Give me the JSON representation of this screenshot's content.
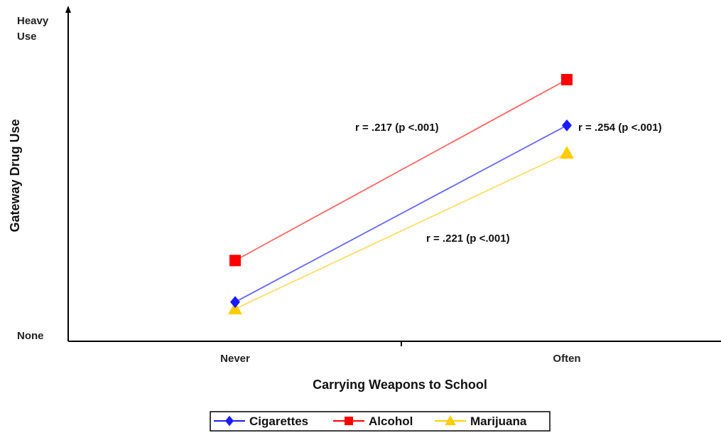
{
  "chart_data": {
    "type": "line",
    "categories": [
      "Never",
      "Often"
    ],
    "xlabel": "Carrying Weapons to School",
    "ylabel": "Gateway Drug Use",
    "y_ticks": {
      "high": "Heavy Use",
      "low": "None"
    },
    "ylim": [
      0,
      1
    ],
    "grid": false,
    "legend": "bottom",
    "series": [
      {
        "name": "Cigarettes",
        "values": [
          0.12,
          0.66
        ],
        "color": "#1a1aff",
        "marker": "diamond",
        "line_color": "#6666ff"
      },
      {
        "name": "Alcohol",
        "values": [
          0.247,
          0.8
        ],
        "color": "#ff0000",
        "marker": "square",
        "line_color": "#ff6666"
      },
      {
        "name": "Marijuana",
        "values": [
          0.099,
          0.575
        ],
        "color": "#ffcc00",
        "marker": "triangle",
        "line_color": "#ffdd66"
      }
    ],
    "annotations": [
      {
        "text": "r = .217 (p <.001)",
        "series": "Alcohol"
      },
      {
        "text": "r = .254 (p <.001)",
        "series": "Cigarettes"
      },
      {
        "text": "r = .221 (p <.001)",
        "series": "Marijuana"
      }
    ]
  }
}
